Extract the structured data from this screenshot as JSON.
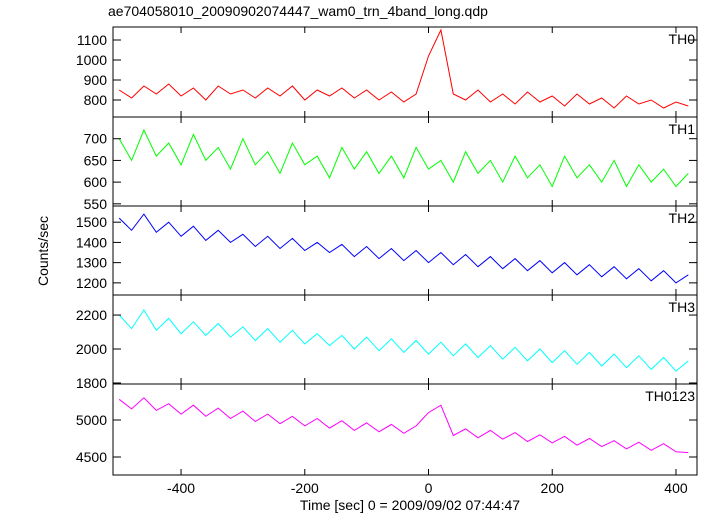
{
  "chart_data": {
    "type": "line",
    "title": "ae704058010_20090902074447_wam0_trn_4band_long.qdp",
    "xlabel": "Time [sec] 0 = 2009/09/02 07:44:47",
    "ylabel": "Counts/sec",
    "xlim": [
      -510,
      434
    ],
    "xticks": [
      -400,
      -200,
      0,
      200,
      400
    ],
    "x": [
      -500,
      -480,
      -460,
      -440,
      -420,
      -400,
      -380,
      -360,
      -340,
      -320,
      -300,
      -280,
      -260,
      -240,
      -220,
      -200,
      -180,
      -160,
      -140,
      -120,
      -100,
      -80,
      -60,
      -40,
      -20,
      0,
      20,
      40,
      60,
      80,
      100,
      120,
      140,
      160,
      180,
      200,
      220,
      240,
      260,
      280,
      300,
      320,
      340,
      360,
      380,
      400,
      420
    ],
    "series": [
      {
        "name": "TH0",
        "color": "#ff0000",
        "ylim": [
          715,
          1165
        ],
        "yticks": [
          800,
          900,
          1000,
          1100
        ],
        "values": [
          850,
          810,
          870,
          830,
          880,
          820,
          860,
          800,
          870,
          830,
          850,
          810,
          860,
          820,
          870,
          800,
          850,
          820,
          860,
          810,
          850,
          800,
          840,
          790,
          830,
          1020,
          1150,
          830,
          800,
          850,
          790,
          830,
          780,
          840,
          790,
          820,
          770,
          830,
          780,
          810,
          760,
          820,
          780,
          800,
          760,
          790,
          770
        ]
      },
      {
        "name": "TH1",
        "color": "#00ff00",
        "ylim": [
          545,
          750
        ],
        "yticks": [
          550,
          600,
          650,
          700
        ],
        "values": [
          700,
          650,
          720,
          660,
          690,
          640,
          710,
          650,
          680,
          630,
          700,
          640,
          670,
          620,
          690,
          640,
          660,
          610,
          680,
          630,
          670,
          620,
          660,
          610,
          680,
          630,
          650,
          600,
          670,
          620,
          650,
          600,
          660,
          610,
          640,
          590,
          660,
          610,
          640,
          600,
          650,
          590,
          640,
          600,
          630,
          590,
          620
        ]
      },
      {
        "name": "TH2",
        "color": "#0000ff",
        "ylim": [
          1140,
          1580
        ],
        "yticks": [
          1200,
          1300,
          1400,
          1500
        ],
        "values": [
          1520,
          1460,
          1540,
          1450,
          1500,
          1430,
          1480,
          1410,
          1460,
          1400,
          1440,
          1380,
          1430,
          1370,
          1420,
          1360,
          1400,
          1350,
          1390,
          1330,
          1380,
          1320,
          1370,
          1310,
          1360,
          1300,
          1350,
          1290,
          1340,
          1280,
          1330,
          1270,
          1320,
          1260,
          1310,
          1250,
          1300,
          1240,
          1290,
          1230,
          1280,
          1220,
          1270,
          1210,
          1260,
          1200,
          1240
        ]
      },
      {
        "name": "TH3",
        "color": "#00ffff",
        "ylim": [
          1794,
          2318
        ],
        "yticks": [
          1800,
          2000,
          2200
        ],
        "values": [
          2200,
          2120,
          2230,
          2110,
          2180,
          2090,
          2160,
          2080,
          2150,
          2070,
          2130,
          2050,
          2120,
          2040,
          2110,
          2030,
          2090,
          2020,
          2080,
          2000,
          2070,
          1990,
          2060,
          1980,
          2050,
          1970,
          2040,
          1960,
          2030,
          1950,
          2020,
          1940,
          2010,
          1930,
          2000,
          1920,
          1990,
          1910,
          1980,
          1900,
          1970,
          1890,
          1960,
          1880,
          1950,
          1870,
          1930
        ]
      },
      {
        "name": "TH0123",
        "color": "#ff00ff",
        "ylim": [
          4257,
          5486
        ],
        "yticks": [
          4500,
          5000
        ],
        "values": [
          5280,
          5150,
          5300,
          5130,
          5220,
          5080,
          5200,
          5050,
          5160,
          5020,
          5120,
          4980,
          5080,
          4950,
          5050,
          4920,
          5020,
          4890,
          4990,
          4860,
          4960,
          4840,
          4940,
          4820,
          4920,
          5100,
          5200,
          4790,
          4880,
          4760,
          4860,
          4740,
          4830,
          4710,
          4800,
          4690,
          4780,
          4660,
          4750,
          4640,
          4720,
          4610,
          4700,
          4590,
          4680,
          4570,
          4560
        ]
      }
    ]
  }
}
